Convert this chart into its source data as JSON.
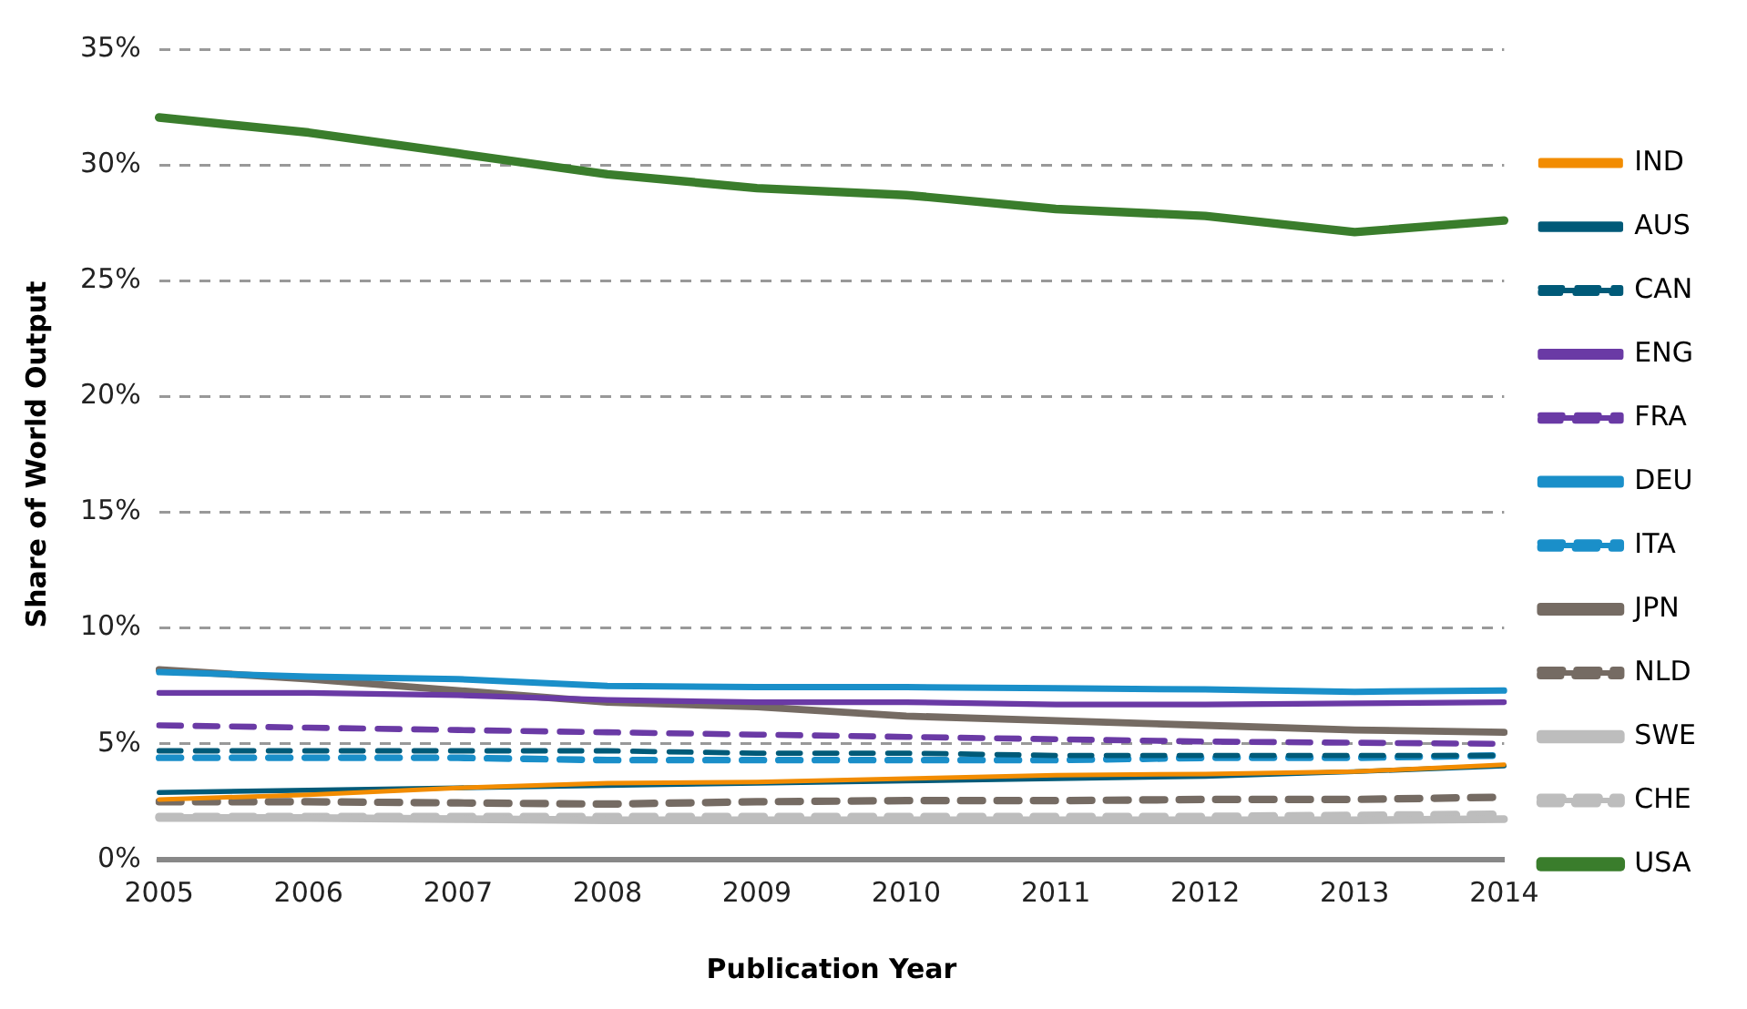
{
  "chart_data": {
    "type": "line",
    "xlabel": "Publication Year",
    "ylabel": "Share of World Output",
    "categories": [
      "2005",
      "2006",
      "2007",
      "2008",
      "2009",
      "2010",
      "2011",
      "2012",
      "2013",
      "2014"
    ],
    "ylim": [
      0,
      35
    ],
    "yticks": [
      {
        "value": 0,
        "label": "0%"
      },
      {
        "value": 5,
        "label": "5%"
      },
      {
        "value": 10,
        "label": "10%"
      },
      {
        "value": 15,
        "label": "15%"
      },
      {
        "value": 20,
        "label": "20%"
      },
      {
        "value": 25,
        "label": "25%"
      },
      {
        "value": 30,
        "label": "30%"
      },
      {
        "value": 35,
        "label": "35%"
      }
    ],
    "grid": "y",
    "legend": "right",
    "marker": "none",
    "series": [
      {
        "name": "IND",
        "color": "#f28c00",
        "line_style": "solid",
        "values": [
          2.6,
          2.8,
          3.1,
          3.3,
          3.35,
          3.5,
          3.65,
          3.7,
          3.8,
          4.1
        ]
      },
      {
        "name": "AUS",
        "color": "#005a78",
        "line_style": "solid",
        "values": [
          2.9,
          3.0,
          3.1,
          3.2,
          3.3,
          3.4,
          3.5,
          3.6,
          3.8,
          4.05
        ]
      },
      {
        "name": "CAN",
        "color": "#005a78",
        "line_style": "dashed",
        "values": [
          4.7,
          4.7,
          4.7,
          4.7,
          4.6,
          4.6,
          4.5,
          4.5,
          4.5,
          4.5
        ]
      },
      {
        "name": "ENG",
        "color": "#6a3aa5",
        "line_style": "solid",
        "values": [
          7.2,
          7.2,
          7.1,
          6.9,
          6.8,
          6.8,
          6.7,
          6.7,
          6.75,
          6.8
        ]
      },
      {
        "name": "FRA",
        "color": "#6a3aa5",
        "line_style": "dashed",
        "values": [
          5.8,
          5.7,
          5.6,
          5.5,
          5.4,
          5.3,
          5.2,
          5.1,
          5.05,
          5.0
        ]
      },
      {
        "name": "DEU",
        "color": "#1a8fc9",
        "line_style": "solid",
        "values": [
          8.1,
          7.9,
          7.8,
          7.5,
          7.45,
          7.45,
          7.4,
          7.35,
          7.25,
          7.3
        ]
      },
      {
        "name": "ITA",
        "color": "#1a8fc9",
        "line_style": "dashed",
        "values": [
          4.4,
          4.4,
          4.4,
          4.3,
          4.3,
          4.3,
          4.3,
          4.4,
          4.4,
          4.5
        ]
      },
      {
        "name": "JPN",
        "color": "#756b63",
        "line_style": "solid",
        "values": [
          8.2,
          7.8,
          7.3,
          6.8,
          6.6,
          6.2,
          6.0,
          5.8,
          5.6,
          5.5
        ]
      },
      {
        "name": "NLD",
        "color": "#756b63",
        "line_style": "dashed",
        "values": [
          2.5,
          2.5,
          2.45,
          2.4,
          2.5,
          2.55,
          2.55,
          2.6,
          2.6,
          2.7
        ]
      },
      {
        "name": "SWE",
        "color": "#bdbdbd",
        "line_style": "solid",
        "values": [
          1.8,
          1.8,
          1.75,
          1.7,
          1.7,
          1.7,
          1.7,
          1.7,
          1.7,
          1.75
        ]
      },
      {
        "name": "CHE",
        "color": "#bdbdbd",
        "line_style": "dashed",
        "values": [
          1.85,
          1.85,
          1.85,
          1.85,
          1.85,
          1.85,
          1.85,
          1.85,
          1.9,
          1.95
        ]
      },
      {
        "name": "USA",
        "color": "#3a7d2c",
        "line_style": "solid",
        "values": [
          32.05,
          31.4,
          30.5,
          29.6,
          29.0,
          28.7,
          28.1,
          27.8,
          27.1,
          27.6
        ]
      }
    ]
  }
}
